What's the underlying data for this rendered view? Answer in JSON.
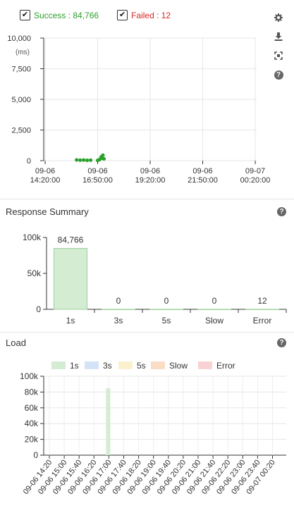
{
  "top_legend": {
    "success_label": "Success : 84,766",
    "failed_label": "Failed : 12",
    "success_color": "#2ca02c",
    "failed_color": "#d62728"
  },
  "toolbar": {
    "icons": [
      "gear-icon",
      "download-icon",
      "fullscreen-icon",
      "help-icon"
    ],
    "help_glyph": "?"
  },
  "sections": {
    "response_summary_title": "Response Summary",
    "load_title": "Load"
  },
  "chart_data": [
    {
      "type": "scatter",
      "title": "",
      "ylabel": "(ms)",
      "yticks": [
        "10,000",
        "7,500",
        "5,000",
        "2,500",
        "0"
      ],
      "ylim": [
        0,
        10000
      ],
      "xticks": [
        {
          "date": "09-06",
          "time": "14:20:00"
        },
        {
          "date": "09-06",
          "time": "16:50:00"
        },
        {
          "date": "09-06",
          "time": "19:20:00"
        },
        {
          "date": "09-06",
          "time": "21:50:00"
        },
        {
          "date": "09-07",
          "time": "00:20:00"
        }
      ],
      "xlim": [
        "09-06 14:20:00",
        "09-07 00:20:00"
      ],
      "points": [
        {
          "x": "09-06 15:50",
          "y": 60
        },
        {
          "x": "09-06 16:00",
          "y": 40
        },
        {
          "x": "09-06 16:10",
          "y": 50
        },
        {
          "x": "09-06 16:20",
          "y": 30
        },
        {
          "x": "09-06 16:30",
          "y": 40
        },
        {
          "x": "09-06 16:50",
          "y": 20
        },
        {
          "x": "09-06 16:55",
          "y": 80
        },
        {
          "x": "09-06 17:00",
          "y": 300
        },
        {
          "x": "09-06 17:02",
          "y": 200
        },
        {
          "x": "09-06 17:05",
          "y": 450
        },
        {
          "x": "09-06 17:08",
          "y": 150
        }
      ],
      "color": "#2ca02c"
    },
    {
      "type": "bar",
      "title": "Response Summary",
      "categories": [
        "1s",
        "3s",
        "5s",
        "Slow",
        "Error"
      ],
      "values": [
        84766,
        0,
        0,
        0,
        12
      ],
      "value_labels": [
        "84,766",
        "0",
        "0",
        "0",
        "12"
      ],
      "yticks": [
        "100k",
        "50k",
        "0"
      ],
      "ylim": [
        0,
        100000
      ],
      "bar_color": "#d4ecd2",
      "bar_border": "#9bd09a"
    },
    {
      "type": "bar",
      "title": "Load",
      "legend": [
        {
          "name": "1s",
          "color": "#d4ecd2"
        },
        {
          "name": "3s",
          "color": "#d5e3f7"
        },
        {
          "name": "5s",
          "color": "#fcf1cf"
        },
        {
          "name": "Slow",
          "color": "#fbdcc4"
        },
        {
          "name": "Error",
          "color": "#f9d3d3"
        }
      ],
      "yticks": [
        "100k",
        "80k",
        "60k",
        "40k",
        "20k",
        "0"
      ],
      "ylim": [
        0,
        100000
      ],
      "categories": [
        "09-06 14:20",
        "09-06 15:00",
        "09-06 15:40",
        "09-06 16:20",
        "09-06 17:00",
        "09-06 17:40",
        "09-06 18:20",
        "09-06 19:00",
        "09-06 19:40",
        "09-06 20:20",
        "09-06 21:00",
        "09-06 21:40",
        "09-06 22:20",
        "09-06 23:00",
        "09-06 23:40",
        "09-07 00:20"
      ],
      "bars": [
        {
          "x": "09-06 17:00",
          "series": "1s",
          "value": 84766
        }
      ]
    }
  ]
}
